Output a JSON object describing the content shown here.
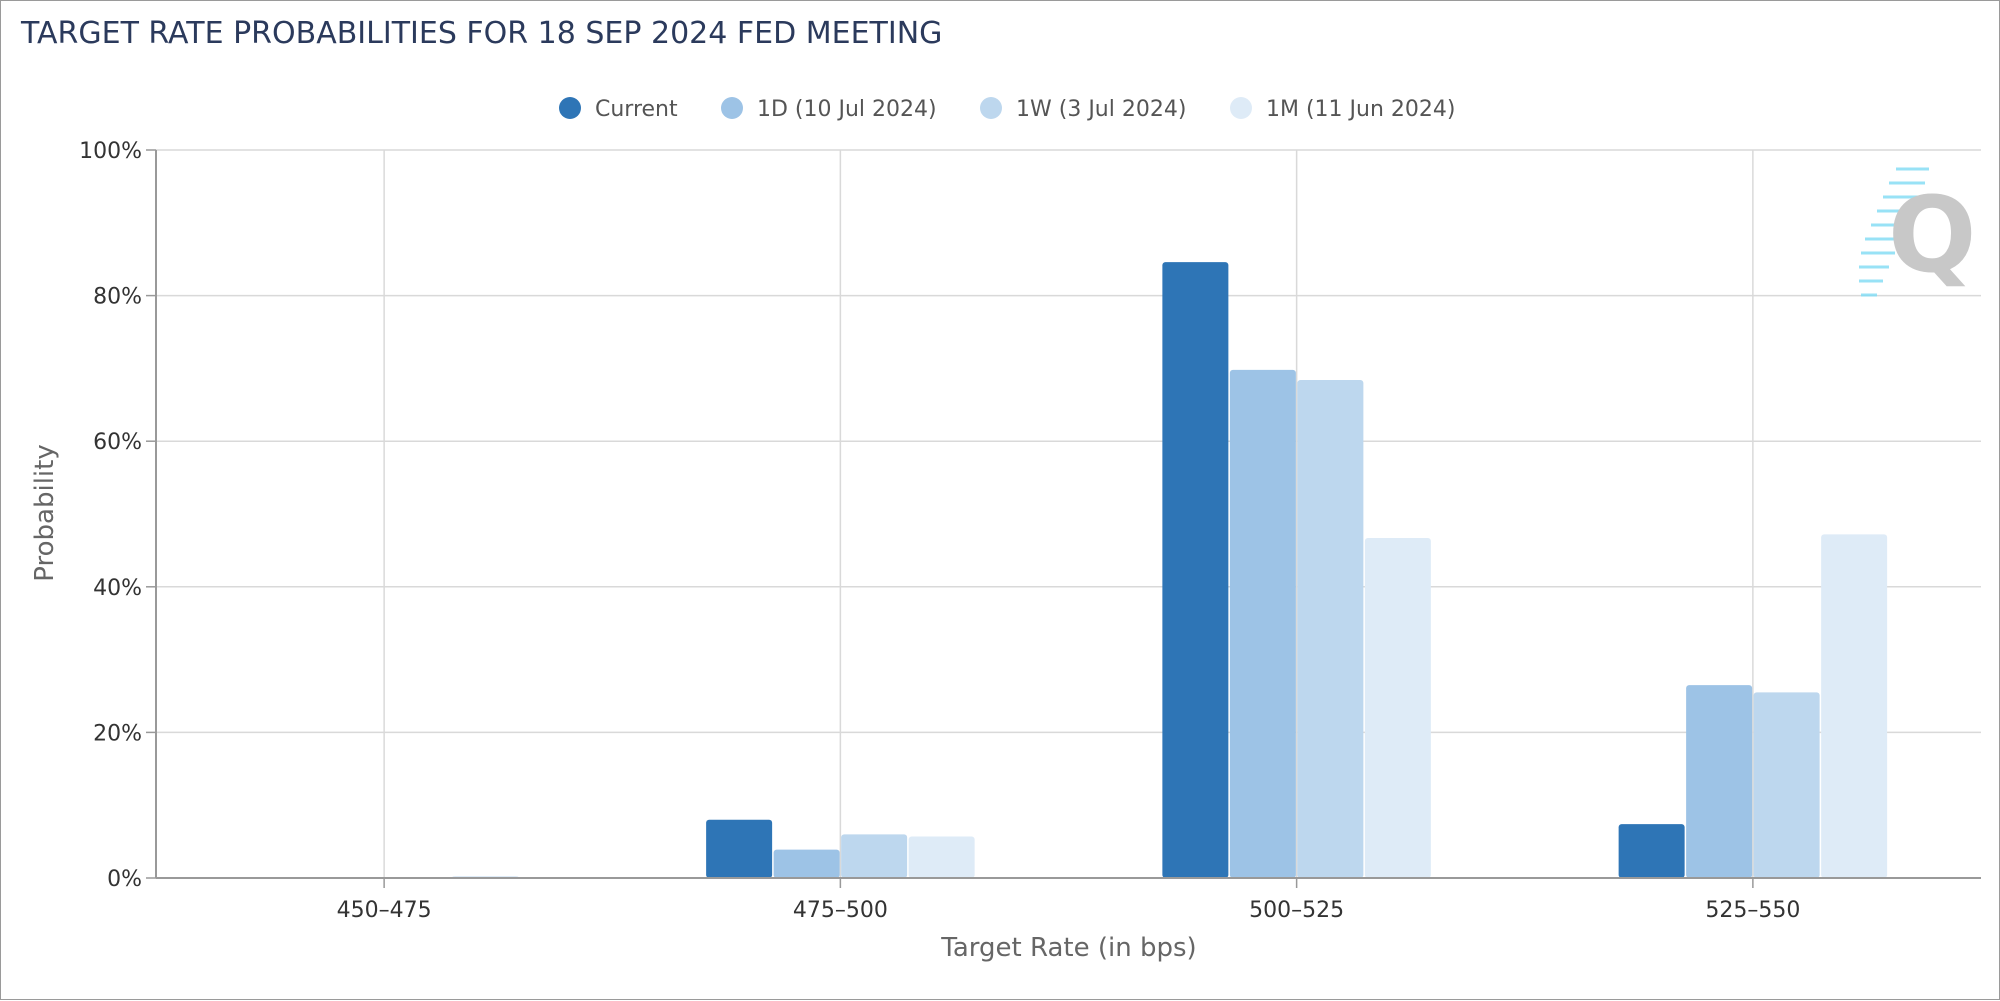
{
  "chart_data": {
    "type": "bar",
    "title": "TARGET RATE PROBABILITIES FOR 18 SEP 2024 FED MEETING",
    "xlabel": "Target Rate (in bps)",
    "ylabel": "Probability",
    "categories": [
      "450-475",
      "475-500",
      "500-525",
      "525-550"
    ],
    "yticks": [
      "0%",
      "20%",
      "40%",
      "60%",
      "80%",
      "100%"
    ],
    "ylim": [
      0,
      100
    ],
    "grid": true,
    "legend_position": "top-center",
    "series": [
      {
        "name": "Current",
        "color": "#2e75b6",
        "values": [
          0,
          8.0,
          84.6,
          7.4
        ]
      },
      {
        "name": "1D (10 Jul 2024)",
        "color": "#9dc3e6",
        "values": [
          0,
          3.9,
          69.8,
          26.5
        ]
      },
      {
        "name": "1W (3 Jul 2024)",
        "color": "#bdd7ee",
        "values": [
          0,
          6.0,
          68.4,
          25.5
        ]
      },
      {
        "name": "1M (11 Jun 2024)",
        "color": "#deebf7",
        "values": [
          0.2,
          5.7,
          46.7,
          47.2
        ]
      }
    ]
  },
  "watermark": {
    "icon": "quikstrike-q-logo-icon",
    "letter": "Q"
  }
}
